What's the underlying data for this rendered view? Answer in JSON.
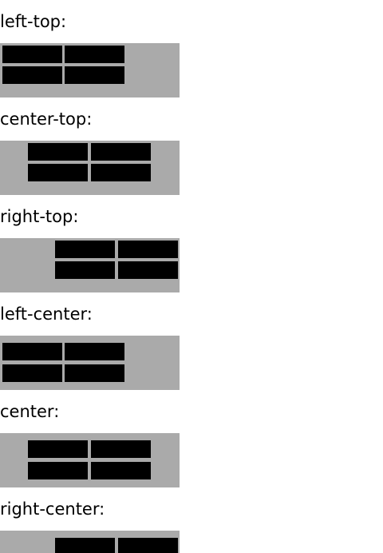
{
  "sections": [
    {
      "label": "left-top:",
      "h_align": "left",
      "v_align": "top"
    },
    {
      "label": "center-top:",
      "h_align": "center",
      "v_align": "top"
    },
    {
      "label": "right-top:",
      "h_align": "right",
      "v_align": "top"
    },
    {
      "label": "left-center:",
      "h_align": "left",
      "v_align": "center"
    },
    {
      "label": "center:",
      "h_align": "center",
      "v_align": "center"
    },
    {
      "label": "right-center:",
      "h_align": "right",
      "v_align": "center"
    }
  ]
}
